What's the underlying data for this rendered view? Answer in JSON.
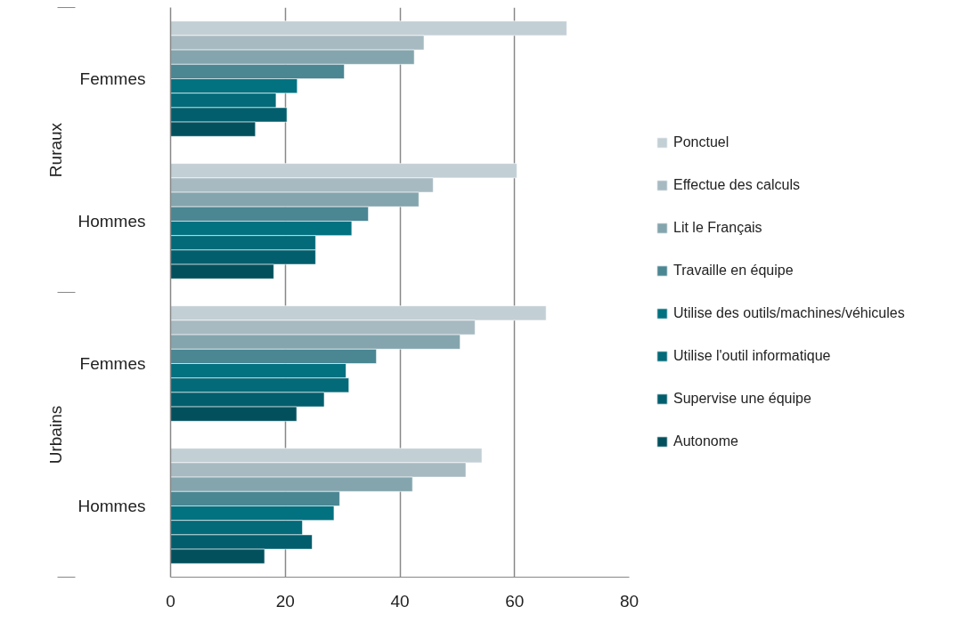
{
  "chart_data": {
    "type": "bar",
    "orientation": "horizontal",
    "categories": [
      "Femmes",
      "Hommes",
      "Femmes",
      "Hommes"
    ],
    "annotations": [
      "Ruraux",
      "Urbains"
    ],
    "series": [
      {
        "name": "Ponctuel",
        "color": "#c2cfd5",
        "values": [
          69.1,
          60.4,
          65.5,
          54.3
        ]
      },
      {
        "name": "Effectue des calculs",
        "color": "#a7bac1",
        "values": [
          44.2,
          45.8,
          53.1,
          51.5
        ]
      },
      {
        "name": "Lit le Français",
        "color": "#84a5ad",
        "values": [
          42.5,
          43.3,
          50.5,
          42.2
        ]
      },
      {
        "name": "Travaille en équipe",
        "color": "#4b8693",
        "values": [
          30.3,
          34.5,
          35.9,
          29.5
        ]
      },
      {
        "name": "Utilise des outils/machines/véhicules",
        "color": "#027180",
        "values": [
          22.1,
          31.6,
          30.6,
          28.5
        ]
      },
      {
        "name": "Utilise l'outil informatique",
        "color": "#026a78",
        "values": [
          18.4,
          25.3,
          31.1,
          23.0
        ]
      },
      {
        "name": "Supervise une équipe",
        "color": "#025e6d",
        "values": [
          20.3,
          25.3,
          26.8,
          24.7
        ]
      },
      {
        "name": "Autonome",
        "color": "#03505d",
        "values": [
          14.8,
          18.0,
          22.0,
          16.4
        ]
      }
    ],
    "xlim": [
      0,
      80
    ],
    "xticks": [
      0,
      20,
      40,
      60,
      80
    ],
    "grid": "x",
    "legend": "right"
  }
}
